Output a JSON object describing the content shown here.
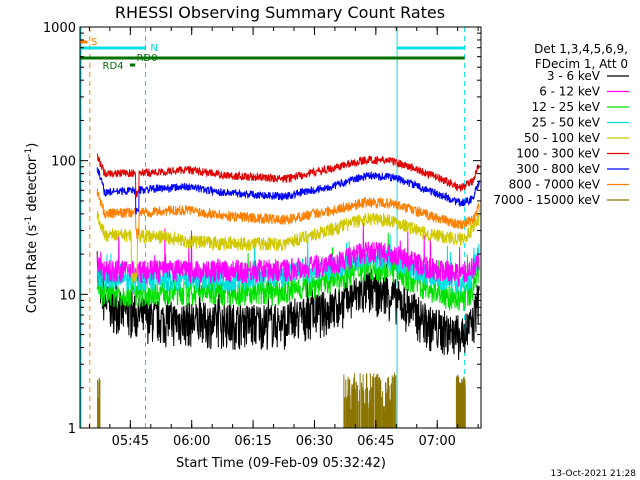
{
  "chart_data": {
    "type": "line",
    "title": "RHESSI Observing Summary Count Rates",
    "xlabel": "Start Time (09-Feb-09 05:32:42)",
    "ylabel": "Count Rate (s⁻¹ detector⁻¹)",
    "ylabel_main": "Count Rate (s",
    "ylabel_sup1": "-1",
    "ylabel_mid": " detector",
    "ylabel_sup2": "-1",
    "ylabel_end": ")",
    "yscale": "log",
    "ylim": [
      1,
      1000
    ],
    "xlim_minutes": [
      0,
      98
    ],
    "ytick_values": [
      1,
      10,
      100,
      1000
    ],
    "ytick_labels": [
      "1",
      "10",
      "100",
      "1000"
    ],
    "xticks": [
      {
        "label": "05:45",
        "minute": 12.3
      },
      {
        "label": "06:00",
        "minute": 27.3
      },
      {
        "label": "06:15",
        "minute": 42.3
      },
      {
        "label": "06:30",
        "minute": 57.3
      },
      {
        "label": "06:45",
        "minute": 72.3
      },
      {
        "label": "07:00",
        "minute": 87.3
      }
    ],
    "legend_header": [
      "Det 1,3,4,5,6,9,",
      "FDecim 1, Att 0"
    ],
    "legend_position": "right",
    "timestamp": "13-Oct-2021 21:28",
    "markers": [
      {
        "label": "S",
        "color": "#ff8000"
      },
      {
        "label": "N",
        "color": "#00e0e0"
      },
      {
        "label": "RD0",
        "color": "#007000"
      },
      {
        "label": "RD4",
        "color": "#007000"
      }
    ],
    "series": [
      {
        "name": "3 - 6 keV",
        "color": "#000000"
      },
      {
        "name": "6 - 12 keV",
        "color": "#ff00ff"
      },
      {
        "name": "12 - 25 keV",
        "color": "#00e000"
      },
      {
        "name": "25 - 50 keV",
        "color": "#00e0e0"
      },
      {
        "name": "50 - 100 keV",
        "color": "#d0c800"
      },
      {
        "name": "100 - 300 keV",
        "color": "#e00000"
      },
      {
        "name": "300 - 800 keV",
        "color": "#0000ff"
      },
      {
        "name": "800 - 7000 keV",
        "color": "#ff8000"
      },
      {
        "name": "7000 - 15000 keV",
        "color": "#8b7500"
      }
    ],
    "profiles": {
      "3 - 6 keV": [
        [
          4,
          15
        ],
        [
          6,
          9
        ],
        [
          10,
          7.5
        ],
        [
          20,
          6.5
        ],
        [
          35,
          6.2
        ],
        [
          50,
          6.2
        ],
        [
          62,
          8
        ],
        [
          70,
          11
        ],
        [
          76,
          10
        ],
        [
          85,
          6
        ],
        [
          93,
          5
        ],
        [
          96,
          6
        ],
        [
          98,
          11
        ]
      ],
      "6 - 12 keV": [
        [
          4,
          18
        ],
        [
          6,
          15
        ],
        [
          20,
          15
        ],
        [
          35,
          15
        ],
        [
          50,
          15.5
        ],
        [
          62,
          17
        ],
        [
          70,
          21
        ],
        [
          76,
          20
        ],
        [
          85,
          16
        ],
        [
          93,
          14
        ],
        [
          96,
          16
        ],
        [
          98,
          18
        ]
      ],
      "12 - 25 keV": [
        [
          4,
          12
        ],
        [
          6,
          10
        ],
        [
          20,
          10.5
        ],
        [
          35,
          10.5
        ],
        [
          50,
          10.5
        ],
        [
          62,
          13
        ],
        [
          70,
          16
        ],
        [
          76,
          15.5
        ],
        [
          85,
          11
        ],
        [
          93,
          9
        ],
        [
          96,
          11
        ],
        [
          98,
          16
        ]
      ],
      "25 - 50 keV": [
        [
          4,
          14
        ],
        [
          6,
          13
        ],
        [
          20,
          13
        ],
        [
          35,
          13
        ],
        [
          50,
          14
        ],
        [
          62,
          16
        ],
        [
          70,
          19
        ],
        [
          76,
          18.5
        ],
        [
          85,
          14
        ],
        [
          93,
          12
        ],
        [
          96,
          14
        ],
        [
          98,
          24
        ]
      ],
      "50 - 100 keV": [
        [
          4,
          40
        ],
        [
          6,
          28
        ],
        [
          20,
          27
        ],
        [
          26,
          25
        ],
        [
          35,
          24
        ],
        [
          50,
          24
        ],
        [
          62,
          31
        ],
        [
          70,
          37
        ],
        [
          76,
          36
        ],
        [
          85,
          28
        ],
        [
          93,
          26
        ],
        [
          96,
          30
        ],
        [
          98,
          40
        ]
      ],
      "100 - 300 keV": [
        [
          4,
          110
        ],
        [
          6,
          80
        ],
        [
          20,
          82
        ],
        [
          26,
          86
        ],
        [
          35,
          78
        ],
        [
          50,
          73
        ],
        [
          62,
          88
        ],
        [
          70,
          102
        ],
        [
          76,
          100
        ],
        [
          85,
          80
        ],
        [
          93,
          62
        ],
        [
          96,
          70
        ],
        [
          98,
          103
        ]
      ],
      "300 - 800 keV": [
        [
          4,
          90
        ],
        [
          6,
          58
        ],
        [
          20,
          62
        ],
        [
          26,
          64
        ],
        [
          35,
          58
        ],
        [
          50,
          54
        ],
        [
          62,
          65
        ],
        [
          70,
          77
        ],
        [
          76,
          76
        ],
        [
          85,
          60
        ],
        [
          93,
          48
        ],
        [
          96,
          52
        ],
        [
          98,
          72
        ]
      ],
      "800 - 7000 keV": [
        [
          4,
          60
        ],
        [
          6,
          40
        ],
        [
          20,
          42
        ],
        [
          26,
          43
        ],
        [
          35,
          39
        ],
        [
          50,
          36
        ],
        [
          62,
          43
        ],
        [
          70,
          49
        ],
        [
          76,
          48
        ],
        [
          85,
          39
        ],
        [
          93,
          33
        ],
        [
          96,
          36
        ],
        [
          98,
          48
        ]
      ],
      "7000 - 15000 keV": [
        [
          76,
          1.5
        ],
        [
          80,
          1.2
        ]
      ]
    }
  }
}
